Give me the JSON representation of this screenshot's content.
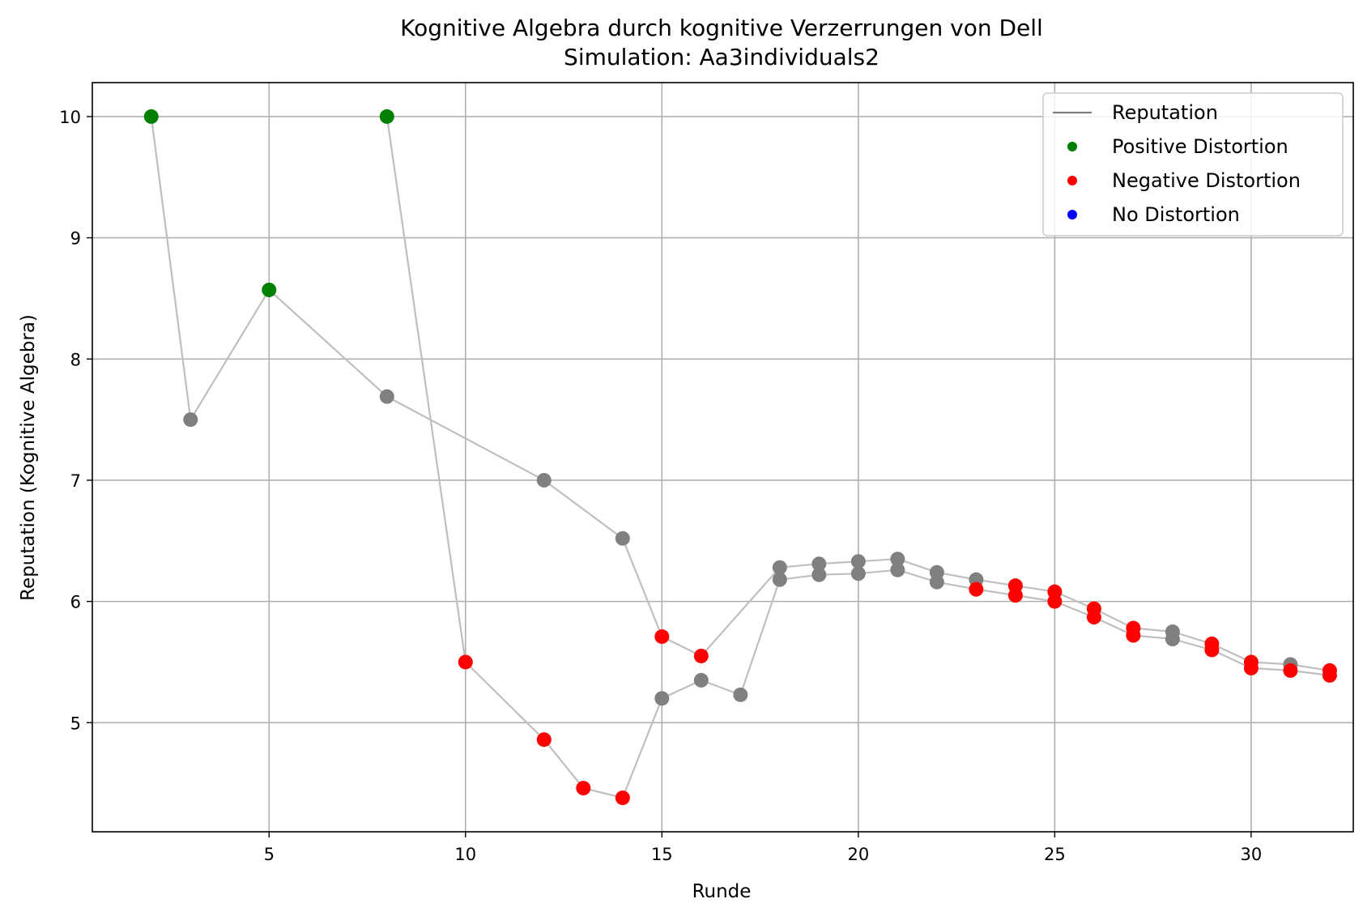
{
  "chart_data": {
    "type": "scatter",
    "title": "Kognitive Algebra durch kognitive Verzerrungen von Dell",
    "subtitle": "Simulation: Aa3individuals2",
    "xlabel": "Runde",
    "ylabel": "Reputation (Kognitive Algebra)",
    "xlim": [
      0.5,
      32.6
    ],
    "ylim": [
      4.1,
      10.28
    ],
    "xticks": [
      5,
      10,
      15,
      20,
      25,
      30
    ],
    "yticks": [
      5,
      6,
      7,
      8,
      9,
      10
    ],
    "grid": true,
    "legend_position": "top-right",
    "colors": {
      "line": "#bfbfbf",
      "legend_line": "#808080",
      "neutral": "#808080",
      "positive": "#008000",
      "negative": "#ff0000",
      "none": "#0000ff"
    },
    "legend": [
      {
        "label": "Reputation",
        "kind": "line",
        "color": "#808080"
      },
      {
        "label": "Positive Distortion",
        "kind": "marker",
        "color": "#008000"
      },
      {
        "label": "Negative Distortion",
        "kind": "marker",
        "color": "#ff0000"
      },
      {
        "label": "No Distortion",
        "kind": "marker",
        "color": "#0000ff"
      }
    ],
    "series": [
      {
        "points": [
          {
            "x": 2,
            "y": 10.0,
            "d": "positive"
          },
          {
            "x": 3,
            "y": 7.5,
            "d": "neutral"
          },
          {
            "x": 5,
            "y": 8.57,
            "d": "positive"
          },
          {
            "x": 8,
            "y": 7.69,
            "d": "neutral"
          },
          {
            "x": 12,
            "y": 7.0,
            "d": "neutral"
          },
          {
            "x": 14,
            "y": 6.52,
            "d": "neutral"
          },
          {
            "x": 15,
            "y": 5.71,
            "d": "negative"
          },
          {
            "x": 16,
            "y": 5.55,
            "d": "negative"
          },
          {
            "x": 18,
            "y": 6.28,
            "d": "neutral"
          },
          {
            "x": 19,
            "y": 6.31,
            "d": "neutral"
          },
          {
            "x": 20,
            "y": 6.33,
            "d": "neutral"
          },
          {
            "x": 21,
            "y": 6.35,
            "d": "neutral"
          },
          {
            "x": 22,
            "y": 6.24,
            "d": "neutral"
          },
          {
            "x": 23,
            "y": 6.18,
            "d": "neutral"
          },
          {
            "x": 24,
            "y": 6.13,
            "d": "negative"
          },
          {
            "x": 25,
            "y": 6.08,
            "d": "negative"
          },
          {
            "x": 26,
            "y": 5.94,
            "d": "negative"
          },
          {
            "x": 27,
            "y": 5.78,
            "d": "negative"
          },
          {
            "x": 28,
            "y": 5.75,
            "d": "neutral"
          },
          {
            "x": 29,
            "y": 5.65,
            "d": "negative"
          },
          {
            "x": 30,
            "y": 5.5,
            "d": "negative"
          },
          {
            "x": 31,
            "y": 5.48,
            "d": "neutral"
          },
          {
            "x": 32,
            "y": 5.43,
            "d": "negative"
          }
        ]
      },
      {
        "points": [
          {
            "x": 8,
            "y": 10.0,
            "d": "positive"
          },
          {
            "x": 10,
            "y": 5.5,
            "d": "negative"
          },
          {
            "x": 12,
            "y": 4.86,
            "d": "negative"
          },
          {
            "x": 13,
            "y": 4.46,
            "d": "negative"
          },
          {
            "x": 14,
            "y": 4.38,
            "d": "negative"
          },
          {
            "x": 15,
            "y": 5.2,
            "d": "neutral"
          },
          {
            "x": 16,
            "y": 5.35,
            "d": "neutral"
          },
          {
            "x": 17,
            "y": 5.23,
            "d": "neutral"
          },
          {
            "x": 18,
            "y": 6.18,
            "d": "neutral"
          },
          {
            "x": 19,
            "y": 6.22,
            "d": "neutral"
          },
          {
            "x": 20,
            "y": 6.23,
            "d": "neutral"
          },
          {
            "x": 21,
            "y": 6.26,
            "d": "neutral"
          },
          {
            "x": 22,
            "y": 6.16,
            "d": "neutral"
          },
          {
            "x": 23,
            "y": 6.1,
            "d": "negative"
          },
          {
            "x": 24,
            "y": 6.05,
            "d": "negative"
          },
          {
            "x": 25,
            "y": 6.0,
            "d": "negative"
          },
          {
            "x": 26,
            "y": 5.87,
            "d": "negative"
          },
          {
            "x": 27,
            "y": 5.72,
            "d": "negative"
          },
          {
            "x": 28,
            "y": 5.69,
            "d": "neutral"
          },
          {
            "x": 29,
            "y": 5.6,
            "d": "negative"
          },
          {
            "x": 30,
            "y": 5.45,
            "d": "negative"
          },
          {
            "x": 31,
            "y": 5.43,
            "d": "negative"
          },
          {
            "x": 32,
            "y": 5.39,
            "d": "negative"
          }
        ]
      }
    ]
  }
}
